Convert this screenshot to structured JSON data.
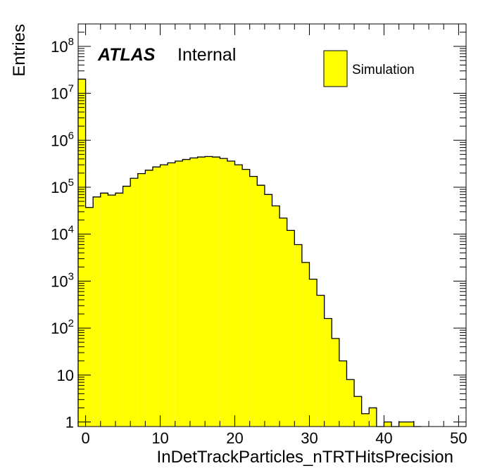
{
  "chart_data": {
    "type": "bar",
    "xlabel": "InDetTrackParticles_nTRTHitsPrecision",
    "ylabel": "Entries",
    "xlim": [
      -1,
      51
    ],
    "ylim": [
      0.8,
      300000000
    ],
    "log_y": true,
    "bin_width": 1,
    "legend_position": "top-right",
    "series": [
      {
        "name": "Simulation",
        "color": "#ffff00",
        "x": [
          -0.5,
          0.5,
          1.5,
          2.5,
          3.5,
          4.5,
          5.5,
          6.5,
          7.5,
          8.5,
          9.5,
          10.5,
          11.5,
          12.5,
          13.5,
          14.5,
          15.5,
          16.5,
          17.5,
          18.5,
          19.5,
          20.5,
          21.5,
          22.5,
          23.5,
          24.5,
          25.5,
          26.5,
          27.5,
          28.5,
          29.5,
          30.5,
          31.5,
          32.5,
          33.5,
          34.5,
          35.5,
          36.5,
          37.5,
          38.5,
          39.5,
          40.5,
          41.5,
          42.5,
          43.5,
          44.5
        ],
        "values": [
          20000000,
          37000,
          62000,
          75000,
          68000,
          75000,
          105000,
          155000,
          195000,
          230000,
          270000,
          300000,
          330000,
          360000,
          390000,
          420000,
          440000,
          450000,
          440000,
          410000,
          360000,
          300000,
          240000,
          170000,
          110000,
          70000,
          40000,
          22000,
          12000,
          6000,
          2500,
          1100,
          500,
          160,
          60,
          20,
          8,
          3.5,
          1.5,
          2,
          0.5,
          1,
          0,
          1,
          1,
          0
        ]
      }
    ],
    "yticks": [
      {
        "value": 1,
        "base": "1",
        "exp": ""
      },
      {
        "value": 10,
        "base": "10",
        "exp": ""
      },
      {
        "value": 100,
        "base": "10",
        "exp": "2"
      },
      {
        "value": 1000,
        "base": "10",
        "exp": "3"
      },
      {
        "value": 10000,
        "base": "10",
        "exp": "4"
      },
      {
        "value": 100000,
        "base": "10",
        "exp": "5"
      },
      {
        "value": 1000000,
        "base": "10",
        "exp": "6"
      },
      {
        "value": 10000000,
        "base": "10",
        "exp": "7"
      },
      {
        "value": 100000000,
        "base": "10",
        "exp": "8"
      }
    ],
    "xticks": [
      0,
      10,
      20,
      30,
      40,
      50
    ],
    "annotations": {
      "atlas": "ATLAS",
      "internal": "Internal"
    }
  }
}
